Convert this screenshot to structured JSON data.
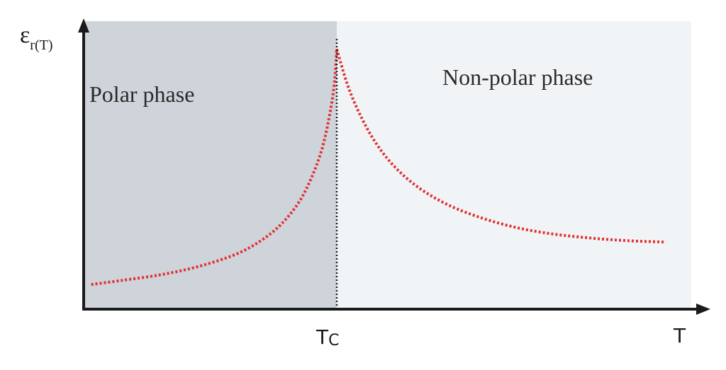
{
  "chart_data": {
    "type": "line",
    "ylabel_main": "ε",
    "ylabel_sub": "r(T)",
    "xlabel": "T",
    "critical_label_main": "T",
    "critical_label_sub": "C",
    "regions": [
      {
        "name": "polar",
        "label": "Polar phase",
        "color": "#cfd3da",
        "x_range": [
          0,
          1
        ]
      },
      {
        "name": "nonpolar",
        "label": "Non-polar phase",
        "color": "#f1f4f7",
        "x_range": [
          1,
          2.4
        ]
      }
    ],
    "critical_x": 1,
    "xlim": [
      0,
      2.4
    ],
    "ylim": [
      0,
      1
    ],
    "series": [
      {
        "color": "#e03232",
        "style": "dotted",
        "x": [
          0.03,
          0.15,
          0.3,
          0.45,
          0.6,
          0.7,
          0.78,
          0.85,
          0.9,
          0.94,
          0.97,
          0.99,
          1.0
        ],
        "y": [
          0.09,
          0.105,
          0.125,
          0.155,
          0.2,
          0.25,
          0.31,
          0.39,
          0.48,
          0.58,
          0.7,
          0.82,
          0.95
        ]
      },
      {
        "color": "#e03232",
        "style": "dotted",
        "x": [
          1.0,
          1.05,
          1.12,
          1.2,
          1.3,
          1.42,
          1.55,
          1.7,
          1.85,
          2.0,
          2.15,
          2.3
        ],
        "y": [
          0.95,
          0.8,
          0.66,
          0.55,
          0.46,
          0.39,
          0.34,
          0.3,
          0.275,
          0.26,
          0.25,
          0.245
        ]
      }
    ]
  }
}
